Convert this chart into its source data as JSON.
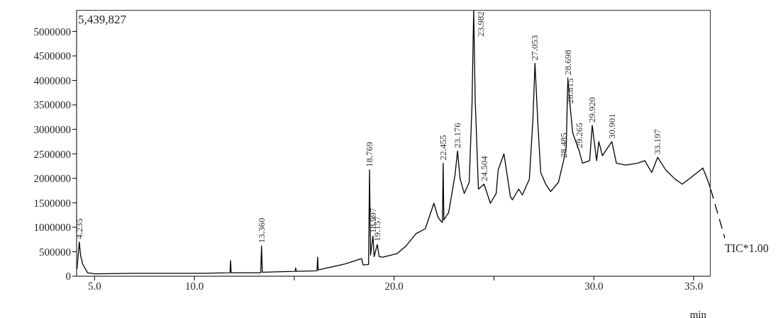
{
  "chart_data": {
    "type": "line",
    "xlabel": "min",
    "x": [
      4.12,
      4.235,
      4.3,
      4.36,
      4.4,
      4.65,
      5.0,
      7.0,
      9.0,
      10.4,
      11.78,
      11.81,
      11.84,
      13.32,
      13.36,
      13.4,
      15.04,
      15.07,
      15.1,
      16.14,
      16.17,
      16.2,
      17.55,
      18.37,
      18.45,
      18.72,
      18.769,
      18.82,
      18.94,
      19.0,
      19.157,
      19.25,
      19.43,
      20.14,
      20.6,
      21.1,
      21.56,
      21.99,
      22.2,
      22.38,
      22.42,
      22.455,
      22.49,
      22.73,
      23.05,
      23.176,
      23.3,
      23.51,
      23.76,
      23.9,
      23.982,
      24.06,
      24.22,
      24.504,
      24.82,
      25.11,
      25.21,
      25.5,
      25.82,
      25.92,
      26.24,
      26.42,
      26.77,
      26.95,
      27.053,
      27.2,
      27.34,
      27.59,
      27.84,
      28.23,
      28.485,
      28.62,
      28.698,
      28.815,
      28.94,
      29.265,
      29.43,
      29.79,
      29.92,
      30.14,
      30.25,
      30.43,
      30.901,
      31.13,
      31.6,
      32.2,
      32.55,
      32.9,
      33.197,
      33.6,
      34.08,
      34.43,
      35.03,
      35.46,
      35.74,
      35.85
    ],
    "series": [
      {
        "name": "TIC*1.00",
        "color": "#000000",
        "values": [
          150000,
          700000,
          420000,
          330000,
          250000,
          70000,
          50000,
          60000,
          60000,
          60000,
          70000,
          320000,
          70000,
          70000,
          620000,
          80000,
          100000,
          170000,
          100000,
          110000,
          390000,
          130000,
          250000,
          360000,
          230000,
          240000,
          2170000,
          430000,
          820000,
          400000,
          650000,
          400000,
          390000,
          460000,
          620000,
          870000,
          970000,
          1490000,
          1200000,
          1110000,
          1100000,
          2310000,
          1150000,
          1300000,
          2070000,
          2560000,
          2000000,
          1690000,
          1920000,
          3500000,
          5430000,
          3600000,
          1780000,
          1880000,
          1490000,
          1690000,
          2170000,
          2500000,
          1630000,
          1560000,
          1780000,
          1660000,
          1980000,
          3200000,
          4350000,
          3100000,
          2120000,
          1880000,
          1730000,
          1920000,
          2360000,
          2650000,
          4050000,
          3470000,
          2930000,
          2560000,
          2310000,
          2360000,
          3080000,
          2360000,
          2750000,
          2460000,
          2750000,
          2310000,
          2270000,
          2310000,
          2360000,
          2120000,
          2430000,
          2170000,
          1980000,
          1880000,
          2070000,
          2210000,
          1920000,
          1780000
        ]
      }
    ],
    "xlim": [
      4.1,
      35.85
    ],
    "xticks": [
      {
        "value": 5,
        "label": "5.0"
      },
      {
        "value": 10,
        "label": "10.0"
      },
      {
        "value": 15,
        "label": null
      },
      {
        "value": 20,
        "label": "20.0"
      },
      {
        "value": 25,
        "label": null
      },
      {
        "value": 30,
        "label": "30.0"
      },
      {
        "value": 35,
        "label": "35.0"
      }
    ],
    "ylim": [
      0,
      5439827
    ],
    "yticks": [
      0,
      500000,
      1000000,
      1500000,
      2000000,
      2500000,
      3000000,
      3500000,
      4000000,
      4500000,
      5000000
    ],
    "grid": false,
    "legend": false,
    "marker": "none",
    "line_style": "solid",
    "annotations": [
      "5,439,827",
      {
        "text": "4.235",
        "x": 4.235,
        "y": 700000
      },
      {
        "text": "13.360",
        "x": 13.36,
        "y": 620000
      },
      {
        "text": "18.769",
        "x": 18.769,
        "y": 2170000
      },
      {
        "text": "18.997",
        "x": 18.94,
        "y": 820000
      },
      {
        "text": "19.157",
        "x": 19.157,
        "y": 650000
      },
      {
        "text": "22.455",
        "x": 22.455,
        "y": 2310000
      },
      {
        "text": "23.176",
        "x": 23.176,
        "y": 2560000
      },
      {
        "text": "23.982",
        "x": 23.982,
        "y": 5430000
      },
      {
        "text": "24.504",
        "x": 24.504,
        "y": 1880000
      },
      {
        "text": "27.053",
        "x": 27.053,
        "y": 4350000
      },
      {
        "text": "28.485",
        "x": 28.485,
        "y": 2360000
      },
      {
        "text": "28.698",
        "x": 28.698,
        "y": 4050000
      },
      {
        "text": "28.815",
        "x": 28.815,
        "y": 3470000
      },
      {
        "text": "29.265",
        "x": 29.265,
        "y": 2560000
      },
      {
        "text": "29.920",
        "x": 29.92,
        "y": 3080000
      },
      {
        "text": "30.901",
        "x": 30.901,
        "y": 2750000
      },
      {
        "text": "33.197",
        "x": 33.197,
        "y": 2430000
      }
    ]
  }
}
